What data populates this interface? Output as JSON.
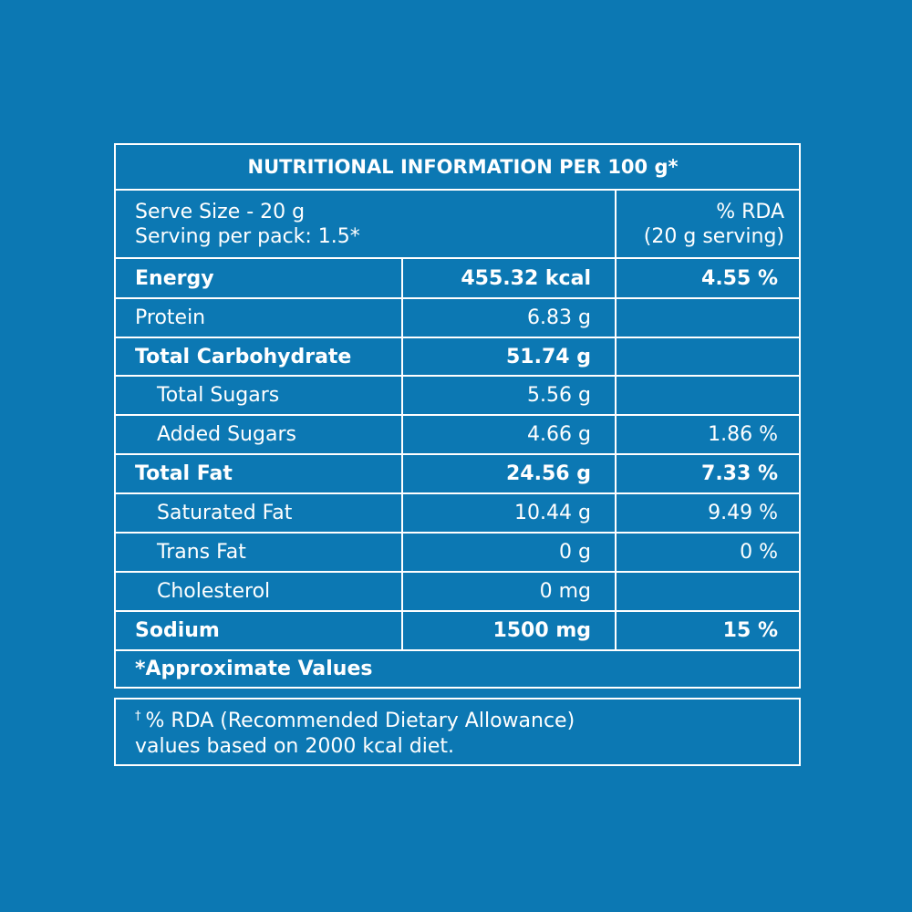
{
  "title": "NUTRITIONAL INFORMATION PER 100 g*",
  "serve": {
    "size": "Serve Size - 20 g",
    "per_pack": "Serving per pack: 1.5*",
    "rda_header_1": "% RDA",
    "rda_header_2": "(20 g serving)"
  },
  "rows": [
    {
      "label": "Energy",
      "amount": "455.32 kcal",
      "rda": "4.55 %"
    },
    {
      "label": "Protein",
      "amount": "6.83 g",
      "rda": ""
    },
    {
      "label": "Total Carbohydrate",
      "amount": "51.74 g",
      "rda": ""
    },
    {
      "label": "Total Sugars",
      "amount": "5.56 g",
      "rda": ""
    },
    {
      "label": "Added Sugars",
      "amount": "4.66 g",
      "rda": "1.86 %"
    },
    {
      "label": "Total Fat",
      "amount": "24.56 g",
      "rda": "7.33 %"
    },
    {
      "label": "Saturated Fat",
      "amount": "10.44 g",
      "rda": "9.49 %"
    },
    {
      "label": "Trans Fat",
      "amount": "0 g",
      "rda": "0 %"
    },
    {
      "label": "Cholesterol",
      "amount": "0 mg",
      "rda": ""
    },
    {
      "label": "Sodium",
      "amount": "1500 mg",
      "rda": "15 %"
    }
  ],
  "footnote": "*Approximate Values",
  "rda_note": {
    "dagger": "†",
    "line1": "% RDA (Recommended Dietary Allowance)",
    "line2": "values based on 2000 kcal diet."
  }
}
